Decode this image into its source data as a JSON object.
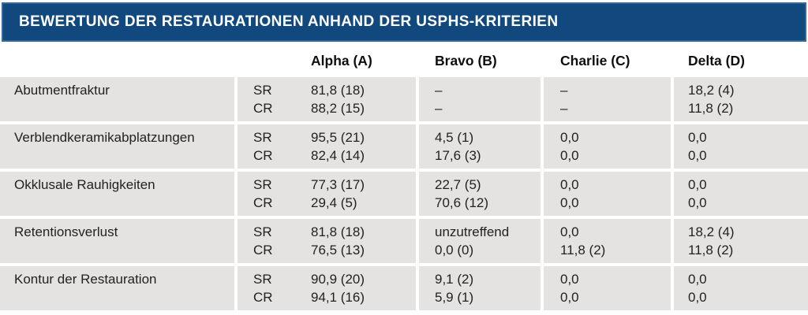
{
  "title": "BEWERTUNG DER RESTAURATIONEN ANHAND DER USPHS-KRITERIEN",
  "columns": [
    "Alpha (A)",
    "Bravo (B)",
    "Charlie (C)",
    "Delta (D)"
  ],
  "labels": {
    "sr": "SR",
    "cr": "CR"
  },
  "rows": [
    {
      "criterion": "Abutmentfraktur",
      "sr": {
        "alpha": "81,8 (18)",
        "bravo": "–",
        "charlie": "–",
        "delta": "18,2 (4)"
      },
      "cr": {
        "alpha": "88,2 (15)",
        "bravo": "–",
        "charlie": "–",
        "delta": "11,8 (2)"
      }
    },
    {
      "criterion": "Verblendkeramikabplatzungen",
      "sr": {
        "alpha": "95,5 (21)",
        "bravo": "4,5 (1)",
        "charlie": "0,0",
        "delta": "0,0"
      },
      "cr": {
        "alpha": "82,4 (14)",
        "bravo": "17,6 (3)",
        "charlie": "0,0",
        "delta": "0,0"
      }
    },
    {
      "criterion": "Okklusale Rauhigkeiten",
      "sr": {
        "alpha": "77,3 (17)",
        "bravo": "22,7 (5)",
        "charlie": "0,0",
        "delta": "0,0"
      },
      "cr": {
        "alpha": "29,4 (5)",
        "bravo": "70,6 (12)",
        "charlie": "0,0",
        "delta": "0,0"
      }
    },
    {
      "criterion": "Retentionsverlust",
      "sr": {
        "alpha": "81,8 (18)",
        "bravo": "unzutreffend",
        "charlie": "0,0",
        "delta": "18,2 (4)"
      },
      "cr": {
        "alpha": "76,5 (13)",
        "bravo": "0,0 (0)",
        "charlie": "11,8 (2)",
        "delta": "11,8 (2)"
      }
    },
    {
      "criterion": "Kontur der Restauration",
      "sr": {
        "alpha": "90,9 (20)",
        "bravo": "9,1 (2)",
        "charlie": "0,0",
        "delta": "0,0"
      },
      "cr": {
        "alpha": "94,1 (16)",
        "bravo": "5,9 (1)",
        "charlie": "0,0",
        "delta": "0,0"
      }
    }
  ],
  "colors": {
    "header_bg": "#11497e",
    "header_border": "#34689c",
    "row_bg": "#e4e3e2",
    "title_text": "#ffffff",
    "body_text": "#222222"
  }
}
